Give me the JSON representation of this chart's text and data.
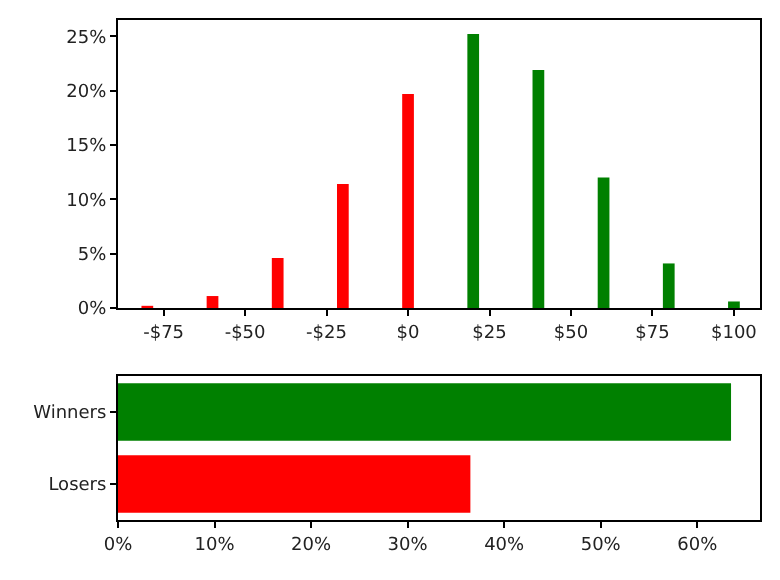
{
  "chart_data": [
    {
      "type": "bar",
      "x": [
        -80,
        -60,
        -40,
        -20,
        0,
        20,
        40,
        60,
        80,
        100
      ],
      "values": [
        0.2,
        1.1,
        4.6,
        11.4,
        19.7,
        25.2,
        21.9,
        12.0,
        4.1,
        0.6
      ],
      "colors": [
        "#ff0000",
        "#ff0000",
        "#ff0000",
        "#ff0000",
        "#ff0000",
        "#008000",
        "#008000",
        "#008000",
        "#008000",
        "#008000"
      ],
      "xlim": [
        -89,
        108
      ],
      "xticks": [
        {
          "value": -75,
          "label": "-$75"
        },
        {
          "value": -50,
          "label": "-$50"
        },
        {
          "value": -25,
          "label": "-$25"
        },
        {
          "value": 0,
          "label": "$0"
        },
        {
          "value": 25,
          "label": "$25"
        },
        {
          "value": 50,
          "label": "$50"
        },
        {
          "value": 75,
          "label": "$75"
        },
        {
          "value": 100,
          "label": "$100"
        }
      ],
      "ylim": [
        0,
        26.5
      ],
      "yticks": [
        {
          "value": 0,
          "label": "0%"
        },
        {
          "value": 5,
          "label": "5%"
        },
        {
          "value": 10,
          "label": "10%"
        },
        {
          "value": 15,
          "label": "15%"
        },
        {
          "value": 20,
          "label": "20%"
        },
        {
          "value": 25,
          "label": "25%"
        }
      ],
      "grid": false,
      "legend": false
    },
    {
      "type": "bar",
      "orientation": "horizontal",
      "categories": [
        "Winners",
        "Losers"
      ],
      "values": [
        63.5,
        36.5
      ],
      "colors": [
        "#008000",
        "#ff0000"
      ],
      "xlim": [
        0,
        66.5
      ],
      "xticks": [
        {
          "value": 0,
          "label": "0%"
        },
        {
          "value": 10,
          "label": "10%"
        },
        {
          "value": 20,
          "label": "20%"
        },
        {
          "value": 30,
          "label": "30%"
        },
        {
          "value": 40,
          "label": "40%"
        },
        {
          "value": 50,
          "label": "50%"
        },
        {
          "value": 60,
          "label": "60%"
        }
      ],
      "grid": false,
      "legend": false
    }
  ]
}
